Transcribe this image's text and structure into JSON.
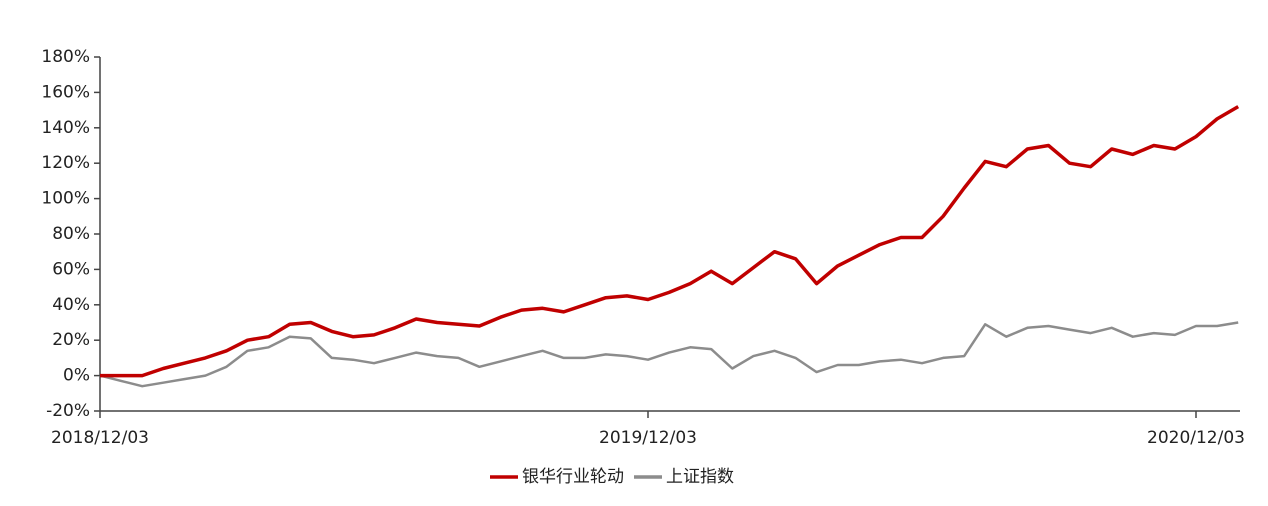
{
  "chart_data": {
    "type": "line",
    "categories": [
      "2018/12/03",
      null,
      null,
      null,
      null,
      null,
      null,
      null,
      null,
      null,
      null,
      null,
      null,
      null,
      null,
      null,
      null,
      null,
      null,
      null,
      null,
      null,
      null,
      null,
      null,
      null,
      "2019/12/03",
      null,
      null,
      null,
      null,
      null,
      null,
      null,
      null,
      null,
      null,
      null,
      null,
      null,
      null,
      null,
      null,
      null,
      null,
      null,
      null,
      null,
      null,
      null,
      null,
      null,
      "2020/12/03",
      null,
      null
    ],
    "series": [
      {
        "name": "银华行业轮动",
        "color": "#c00000",
        "values": [
          0,
          0,
          0,
          4,
          7,
          10,
          14,
          20,
          22,
          29,
          30,
          25,
          22,
          23,
          27,
          32,
          30,
          29,
          28,
          33,
          37,
          38,
          36,
          40,
          44,
          45,
          43,
          47,
          52,
          59,
          52,
          61,
          70,
          66,
          52,
          62,
          68,
          74,
          78,
          78,
          90,
          106,
          121,
          118,
          128,
          130,
          120,
          118,
          128,
          125,
          130,
          128,
          135,
          145,
          152
        ]
      },
      {
        "name": "上证指数",
        "color": "#8c8c8c",
        "values": [
          0,
          -3,
          -6,
          -4,
          -2,
          0,
          5,
          14,
          16,
          22,
          21,
          10,
          9,
          7,
          10,
          13,
          11,
          10,
          5,
          8,
          11,
          14,
          10,
          10,
          12,
          11,
          9,
          13,
          16,
          15,
          4,
          11,
          14,
          10,
          2,
          6,
          6,
          8,
          9,
          7,
          10,
          11,
          29,
          22,
          27,
          28,
          26,
          24,
          27,
          22,
          24,
          23,
          28,
          28,
          30
        ]
      }
    ],
    "ylim": [
      -20,
      180
    ],
    "yticks": [
      {
        "value": -20,
        "label": "-20%"
      },
      {
        "value": 0,
        "label": "0%"
      },
      {
        "value": 20,
        "label": "20%"
      },
      {
        "value": 40,
        "label": "40%"
      },
      {
        "value": 60,
        "label": "60%"
      },
      {
        "value": 80,
        "label": "80%"
      },
      {
        "value": 100,
        "label": "100%"
      },
      {
        "value": 120,
        "label": "120%"
      },
      {
        "value": 140,
        "label": "140%"
      },
      {
        "value": 160,
        "label": "160%"
      },
      {
        "value": 180,
        "label": "180%"
      }
    ],
    "grid": false
  }
}
